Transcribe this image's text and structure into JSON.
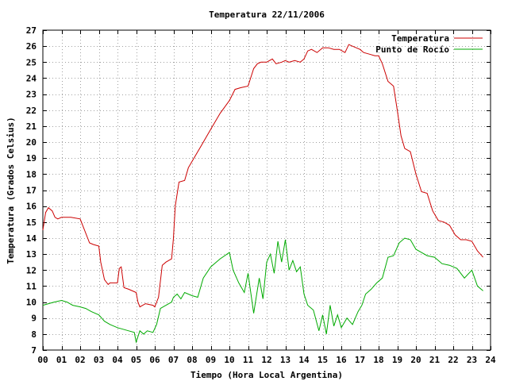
{
  "chart_data": {
    "type": "line",
    "title": "Temperatura 22/11/2006",
    "xlabel": "Tiempo (Hora Local Argentina)",
    "ylabel": "Temperatura (Grados Celsius)",
    "xlim": [
      0,
      24
    ],
    "ylim": [
      7,
      27
    ],
    "x_ticks": [
      "00",
      "01",
      "02",
      "03",
      "04",
      "05",
      "06",
      "07",
      "08",
      "09",
      "10",
      "11",
      "12",
      "13",
      "14",
      "15",
      "16",
      "17",
      "18",
      "19",
      "20",
      "21",
      "22",
      "23",
      "24"
    ],
    "y_ticks": [
      "7",
      "8",
      "9",
      "10",
      "11",
      "12",
      "13",
      "14",
      "15",
      "16",
      "17",
      "18",
      "19",
      "20",
      "21",
      "22",
      "23",
      "24",
      "25",
      "26",
      "27"
    ],
    "grid": true,
    "legend_position": "top-right",
    "series": [
      {
        "name": "Temperatura",
        "color": "#cc0000",
        "x": [
          0.0,
          0.15,
          0.3,
          0.5,
          0.65,
          0.8,
          1.0,
          1.5,
          2.0,
          2.5,
          2.7,
          3.0,
          3.1,
          3.3,
          3.5,
          3.6,
          4.0,
          4.1,
          4.2,
          4.35,
          4.6,
          5.0,
          5.1,
          5.2,
          5.5,
          5.9,
          6.0,
          6.2,
          6.4,
          6.6,
          6.9,
          7.0,
          7.1,
          7.3,
          7.6,
          7.8,
          8.0,
          8.5,
          9.0,
          9.5,
          10.0,
          10.3,
          10.6,
          11.0,
          11.3,
          11.5,
          11.7,
          12.0,
          12.3,
          12.5,
          12.8,
          13.0,
          13.2,
          13.5,
          13.8,
          14.0,
          14.2,
          14.4,
          14.7,
          15.0,
          15.3,
          15.6,
          15.9,
          16.2,
          16.4,
          16.6,
          16.8,
          17.0,
          17.2,
          17.5,
          17.8,
          18.0,
          18.2,
          18.5,
          18.8,
          19.0,
          19.2,
          19.4,
          19.7,
          20.0,
          20.3,
          20.6,
          20.9,
          21.2,
          21.5,
          21.8,
          22.1,
          22.4,
          22.7,
          23.0,
          23.3,
          23.6
        ],
        "values": [
          14.5,
          15.6,
          15.9,
          15.7,
          15.3,
          15.2,
          15.3,
          15.3,
          15.2,
          13.7,
          13.6,
          13.5,
          12.5,
          11.4,
          11.1,
          11.2,
          11.2,
          12.1,
          12.2,
          10.9,
          10.8,
          10.6,
          10.0,
          9.7,
          9.9,
          9.8,
          9.7,
          10.3,
          12.3,
          12.5,
          12.7,
          14.0,
          16.0,
          17.5,
          17.6,
          18.4,
          18.8,
          19.8,
          20.8,
          21.8,
          22.6,
          23.3,
          23.4,
          23.5,
          24.6,
          24.9,
          25.0,
          25.0,
          25.2,
          24.9,
          25.0,
          25.1,
          25.0,
          25.1,
          25.0,
          25.2,
          25.7,
          25.8,
          25.6,
          25.9,
          25.9,
          25.8,
          25.8,
          25.6,
          26.1,
          26.0,
          25.9,
          25.8,
          25.6,
          25.5,
          25.4,
          25.4,
          24.9,
          23.8,
          23.5,
          22.0,
          20.4,
          19.6,
          19.4,
          18.0,
          16.9,
          16.8,
          15.7,
          15.1,
          15.0,
          14.8,
          14.2,
          13.9,
          13.9,
          13.8,
          13.2,
          12.8
        ]
      },
      {
        "name": "Punto de Rocío",
        "color": "#00aa00",
        "x": [
          0.0,
          0.3,
          0.6,
          1.0,
          1.3,
          1.6,
          2.0,
          2.3,
          2.6,
          3.0,
          3.3,
          3.6,
          4.0,
          4.3,
          4.6,
          4.9,
          5.0,
          5.2,
          5.4,
          5.6,
          5.9,
          6.1,
          6.3,
          6.6,
          6.9,
          7.0,
          7.2,
          7.4,
          7.6,
          8.0,
          8.3,
          8.6,
          9.0,
          9.5,
          10.0,
          10.2,
          10.5,
          10.8,
          11.0,
          11.3,
          11.6,
          11.8,
          12.0,
          12.2,
          12.4,
          12.6,
          12.8,
          13.0,
          13.2,
          13.4,
          13.6,
          13.8,
          14.0,
          14.2,
          14.5,
          14.8,
          15.0,
          15.2,
          15.4,
          15.6,
          15.8,
          16.0,
          16.3,
          16.6,
          16.9,
          17.1,
          17.3,
          17.6,
          17.9,
          18.2,
          18.5,
          18.8,
          19.1,
          19.4,
          19.7,
          20.0,
          20.3,
          20.6,
          21.0,
          21.4,
          21.8,
          22.2,
          22.6,
          23.0,
          23.3,
          23.6
        ],
        "values": [
          9.8,
          9.9,
          10.0,
          10.1,
          10.0,
          9.8,
          9.7,
          9.6,
          9.4,
          9.2,
          8.8,
          8.6,
          8.4,
          8.3,
          8.2,
          8.1,
          7.5,
          8.2,
          8.0,
          8.2,
          8.1,
          8.6,
          9.6,
          9.8,
          10.0,
          10.3,
          10.5,
          10.2,
          10.6,
          10.4,
          10.3,
          11.5,
          12.2,
          12.7,
          13.1,
          12.0,
          11.2,
          10.6,
          11.8,
          9.3,
          11.5,
          10.2,
          12.5,
          13.0,
          11.8,
          13.8,
          12.5,
          13.9,
          12.0,
          12.6,
          11.9,
          12.2,
          10.5,
          9.8,
          9.5,
          8.2,
          9.2,
          8.0,
          9.8,
          8.5,
          9.2,
          8.4,
          9.0,
          8.6,
          9.4,
          9.8,
          10.5,
          10.8,
          11.2,
          11.5,
          12.8,
          12.9,
          13.7,
          14.0,
          13.9,
          13.3,
          13.1,
          12.9,
          12.8,
          12.4,
          12.3,
          12.1,
          11.5,
          12.0,
          11.0,
          10.7
        ]
      }
    ]
  }
}
